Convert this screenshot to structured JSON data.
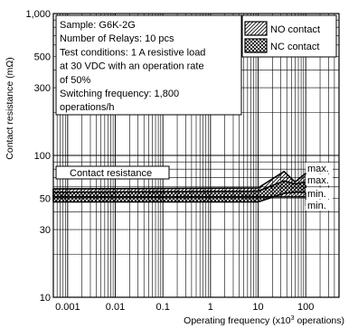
{
  "chart_data": {
    "type": "line",
    "title": "",
    "xlabel": "Operating frequency (x10",
    "xlabel_sup": "3",
    "xlabel_tail": " operations)",
    "ylabel": "Contact resistance (mΩ)",
    "x_scale": "log",
    "y_scale": "log",
    "xlim": [
      0.0005,
      500
    ],
    "ylim": [
      10,
      1000
    ],
    "grid": true,
    "x_ticks": [
      {
        "value": 0.001,
        "label": "0.001"
      },
      {
        "value": 0.01,
        "label": "0.01"
      },
      {
        "value": 0.1,
        "label": "0.1"
      },
      {
        "value": 1,
        "label": "1"
      },
      {
        "value": 10,
        "label": "10"
      },
      {
        "value": 100,
        "label": "100"
      }
    ],
    "y_ticks": [
      {
        "value": 10,
        "label": "10"
      },
      {
        "value": 30,
        "label": "30"
      },
      {
        "value": 50,
        "label": "50"
      },
      {
        "value": 100,
        "label": "100"
      },
      {
        "value": 300,
        "label": "300"
      },
      {
        "value": 500,
        "label": "500"
      },
      {
        "value": 1000,
        "label": "1,000"
      }
    ],
    "legend": {
      "placement": "top-right",
      "entries": [
        {
          "name": "NO contact",
          "pattern": "hatch-diagonal"
        },
        {
          "name": "NC contact",
          "pattern": "hatch-cross"
        }
      ]
    },
    "conditions": [
      "Sample: G6K-2G",
      "Number of Relays: 10 pcs",
      "Test conditions: 1 A resistive load",
      "at 30 VDC with an operation rate",
      "of 50%",
      "Switching frequency: 1,800",
      "operations/h"
    ],
    "band_label": "Contact resistance",
    "series": [
      {
        "name": "NO contact",
        "pattern": "hatch-diagonal",
        "x": [
          0.0005,
          10,
          35,
          60,
          100
        ],
        "max": [
          58,
          59,
          77,
          65,
          75
        ],
        "min": [
          51,
          51,
          51,
          51,
          51
        ]
      },
      {
        "name": "NC contact",
        "pattern": "hatch-cross",
        "x": [
          0.0005,
          10,
          35,
          60,
          100
        ],
        "max": [
          55,
          56,
          66,
          63,
          65
        ],
        "min": [
          47,
          47,
          54,
          55,
          55
        ]
      }
    ],
    "end_labels": [
      "max.",
      "max.",
      "min.",
      "min."
    ]
  }
}
